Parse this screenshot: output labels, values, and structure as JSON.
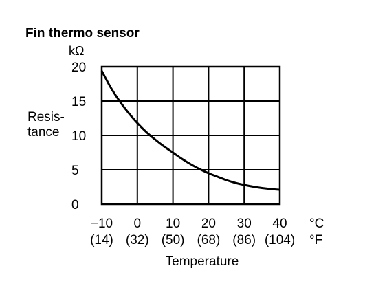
{
  "chart_data": {
    "type": "line",
    "title": "Fin thermo sensor",
    "ylabel_unit": "kΩ",
    "ylabel": [
      "Resis-",
      "tance"
    ],
    "xlabel": "Temperature",
    "x_unit_c": "°C",
    "x_unit_f": "°F",
    "xlim": [
      -10,
      40
    ],
    "ylim": [
      0,
      20
    ],
    "xticks": [
      {
        "value": -10,
        "c": "−10",
        "f": "(14)"
      },
      {
        "value": 0,
        "c": "0",
        "f": "(32)"
      },
      {
        "value": 10,
        "c": "10",
        "f": "(50)"
      },
      {
        "value": 20,
        "c": "20",
        "f": "(68)"
      },
      {
        "value": 30,
        "c": "30",
        "f": "(86)"
      },
      {
        "value": 40,
        "c": "40",
        "f": "(104)"
      }
    ],
    "yticks": [
      {
        "value": 20,
        "label": "20"
      },
      {
        "value": 15,
        "label": "15"
      },
      {
        "value": 10,
        "label": "10"
      },
      {
        "value": 5,
        "label": "5"
      },
      {
        "value": 0,
        "label": "0"
      }
    ],
    "grid": true,
    "series": [
      {
        "x": [
          -10,
          -7.5,
          -5,
          -2.5,
          0,
          2.5,
          5,
          7.5,
          10,
          12.5,
          15,
          17.5,
          20,
          22.5,
          25,
          27.5,
          30,
          32.5,
          35,
          37.5,
          40
        ],
        "y": [
          19.4,
          17.0,
          15.0,
          13.3,
          11.8,
          10.5,
          9.4,
          8.4,
          7.5,
          6.6,
          5.8,
          5.1,
          4.5,
          4.0,
          3.5,
          3.1,
          2.8,
          2.55,
          2.35,
          2.2,
          2.1
        ]
      }
    ]
  }
}
